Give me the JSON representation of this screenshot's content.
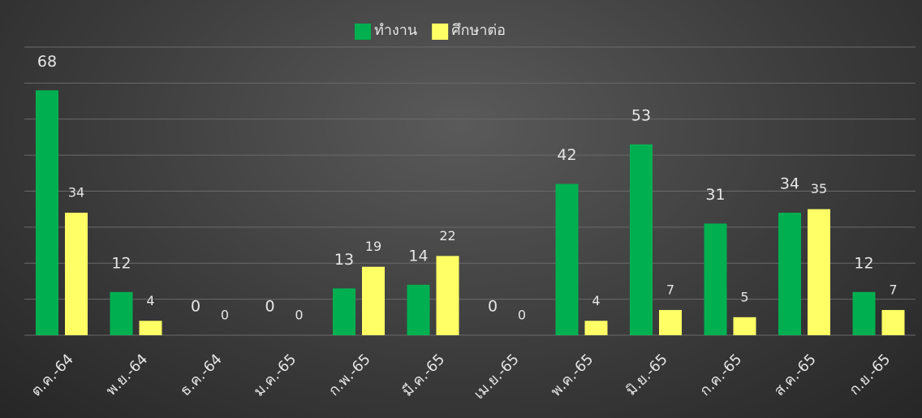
{
  "chart_data": {
    "type": "bar",
    "categories": [
      "ต.ค.-64",
      "พ.ย.-64",
      "ธ.ค.-64",
      "ม.ค.-65",
      "ก.พ.-65",
      "มี.ค.-65",
      "เม.ย.-65",
      "พ.ค.-65",
      "มิ.ย.-65",
      "ก.ค.-65",
      "ส.ค.-65",
      "ก.ย.-65"
    ],
    "series": [
      {
        "name": "ทำงาน",
        "color": "#00b050",
        "values": [
          68,
          12,
          0,
          0,
          13,
          14,
          0,
          42,
          53,
          31,
          34,
          12
        ]
      },
      {
        "name": "ศึกษาต่อ",
        "color": "#ffff66",
        "values": [
          34,
          4,
          0,
          0,
          19,
          22,
          0,
          4,
          7,
          5,
          35,
          7
        ]
      }
    ],
    "ylim": [
      0,
      80
    ],
    "yticks": [
      0,
      10,
      20,
      30,
      40,
      50,
      60,
      70,
      80
    ],
    "grid": true,
    "legend": "top"
  }
}
